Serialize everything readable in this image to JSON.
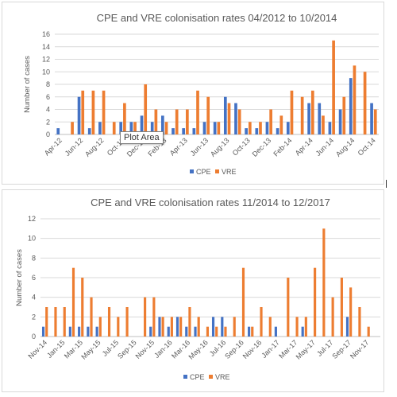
{
  "colors": {
    "cpe": "#4472c4",
    "vre": "#ed7d31",
    "grid": "#d9d9d9",
    "axis": "#bfbfbf",
    "text": "#595959"
  },
  "tooltip": "Plot Area",
  "chart_data": [
    {
      "type": "bar",
      "title": "CPE and VRE colonisation rates 04/2012 to 10/2014",
      "ylabel": "Number of cases",
      "xlabel": "",
      "ylim": [
        0,
        16
      ],
      "yticks": [
        0,
        2,
        4,
        6,
        8,
        10,
        12,
        14,
        16
      ],
      "grid": true,
      "legend": "bottom",
      "categories": [
        "Apr-12",
        "May-12",
        "Jun-12",
        "Jul-12",
        "Aug-12",
        "Sep-12",
        "Oct-12",
        "Nov-12",
        "Dec-12",
        "Jan-13",
        "Feb-13",
        "Mar-13",
        "Apr-13",
        "May-13",
        "Jun-13",
        "Jul-13",
        "Aug-13",
        "Sep-13",
        "Oct-13",
        "Nov-13",
        "Dec-13",
        "Jan-14",
        "Feb-14",
        "Mar-14",
        "Apr-14",
        "May-14",
        "Jun-14",
        "Jul-14",
        "Aug-14",
        "Sep-14",
        "Oct-14"
      ],
      "xticklabels": [
        "Apr-12",
        "",
        "Jun-12",
        "",
        "Aug-12",
        "",
        "Oct-12",
        "",
        "Dec-12",
        "",
        "Feb-13",
        "",
        "Apr-13",
        "",
        "Jun-13",
        "",
        "Aug-13",
        "",
        "Oct-13",
        "",
        "Dec-13",
        "",
        "Feb-14",
        "",
        "Apr-14",
        "",
        "Jun-14",
        "",
        "Aug-14",
        "",
        "Oct-14"
      ],
      "series": [
        {
          "name": "CPE",
          "values": [
            1,
            0,
            6,
            1,
            2,
            0,
            2,
            2,
            3,
            2,
            3,
            1,
            1,
            1,
            2,
            2,
            6,
            5,
            1,
            1,
            2,
            1,
            2,
            0,
            5,
            5,
            2,
            4,
            9,
            0,
            5
          ]
        },
        {
          "name": "VRE",
          "values": [
            0,
            2,
            7,
            7,
            7,
            2,
            5,
            2,
            8,
            4,
            2,
            4,
            4,
            7,
            6,
            2,
            5,
            4,
            2,
            2,
            4,
            3,
            7,
            6,
            7,
            3,
            15,
            6,
            11,
            10,
            4
          ]
        }
      ]
    },
    {
      "type": "bar",
      "title": "CPE and VRE colonisation rates 11/2014 to 12/2017",
      "ylabel": "Number of cases",
      "xlabel": "",
      "ylim": [
        0,
        12
      ],
      "yticks": [
        0,
        2,
        4,
        6,
        8,
        10,
        12
      ],
      "grid": true,
      "legend": "bottom",
      "categories": [
        "Nov-14",
        "Dec-14",
        "Jan-15",
        "Feb-15",
        "Mar-15",
        "Apr-15",
        "May-15",
        "Jun-15",
        "Jul-15",
        "Aug-15",
        "Sep-15",
        "Oct-15",
        "Nov-15",
        "Dec-15",
        "Jan-16",
        "Feb-16",
        "Mar-16",
        "Apr-16",
        "May-16",
        "Jun-16",
        "Jul-16",
        "Aug-16",
        "Sep-16",
        "Oct-16",
        "Nov-16",
        "Dec-16",
        "Jan-17",
        "Feb-17",
        "Mar-17",
        "Apr-17",
        "May-17",
        "Jun-17",
        "Jul-17",
        "Aug-17",
        "Sep-17",
        "Oct-17",
        "Nov-17",
        "Dec-17"
      ],
      "xticklabels": [
        "Nov-14",
        "",
        "Jan-15",
        "",
        "Mar-15",
        "",
        "May-15",
        "",
        "Jul-15",
        "",
        "Sep-15",
        "",
        "Nov-15",
        "",
        "Jan-16",
        "",
        "Mar-16",
        "",
        "May-16",
        "",
        "Jul-16",
        "",
        "Sep-16",
        "",
        "Nov-16",
        "",
        "Jan-17",
        "",
        "Mar-17",
        "",
        "May-17",
        "",
        "Jul-17",
        "",
        "Sep-17",
        "",
        "Nov-17",
        ""
      ],
      "series": [
        {
          "name": "CPE",
          "values": [
            1,
            0,
            0,
            1,
            1,
            1,
            1,
            0,
            0,
            0,
            0,
            0,
            1,
            2,
            1,
            2,
            1,
            1,
            0,
            2,
            2,
            0,
            0,
            1,
            0,
            0,
            1,
            0,
            0,
            1,
            0,
            0,
            0,
            0,
            2,
            0,
            0,
            0
          ]
        },
        {
          "name": "VRE",
          "values": [
            3,
            3,
            3,
            7,
            6,
            4,
            2,
            3,
            2,
            3,
            0,
            4,
            4,
            2,
            2,
            2,
            3,
            2,
            1,
            1,
            1,
            2,
            7,
            1,
            3,
            2,
            0,
            6,
            2,
            2,
            7,
            11,
            4,
            6,
            5,
            3,
            1,
            0
          ]
        }
      ]
    }
  ]
}
